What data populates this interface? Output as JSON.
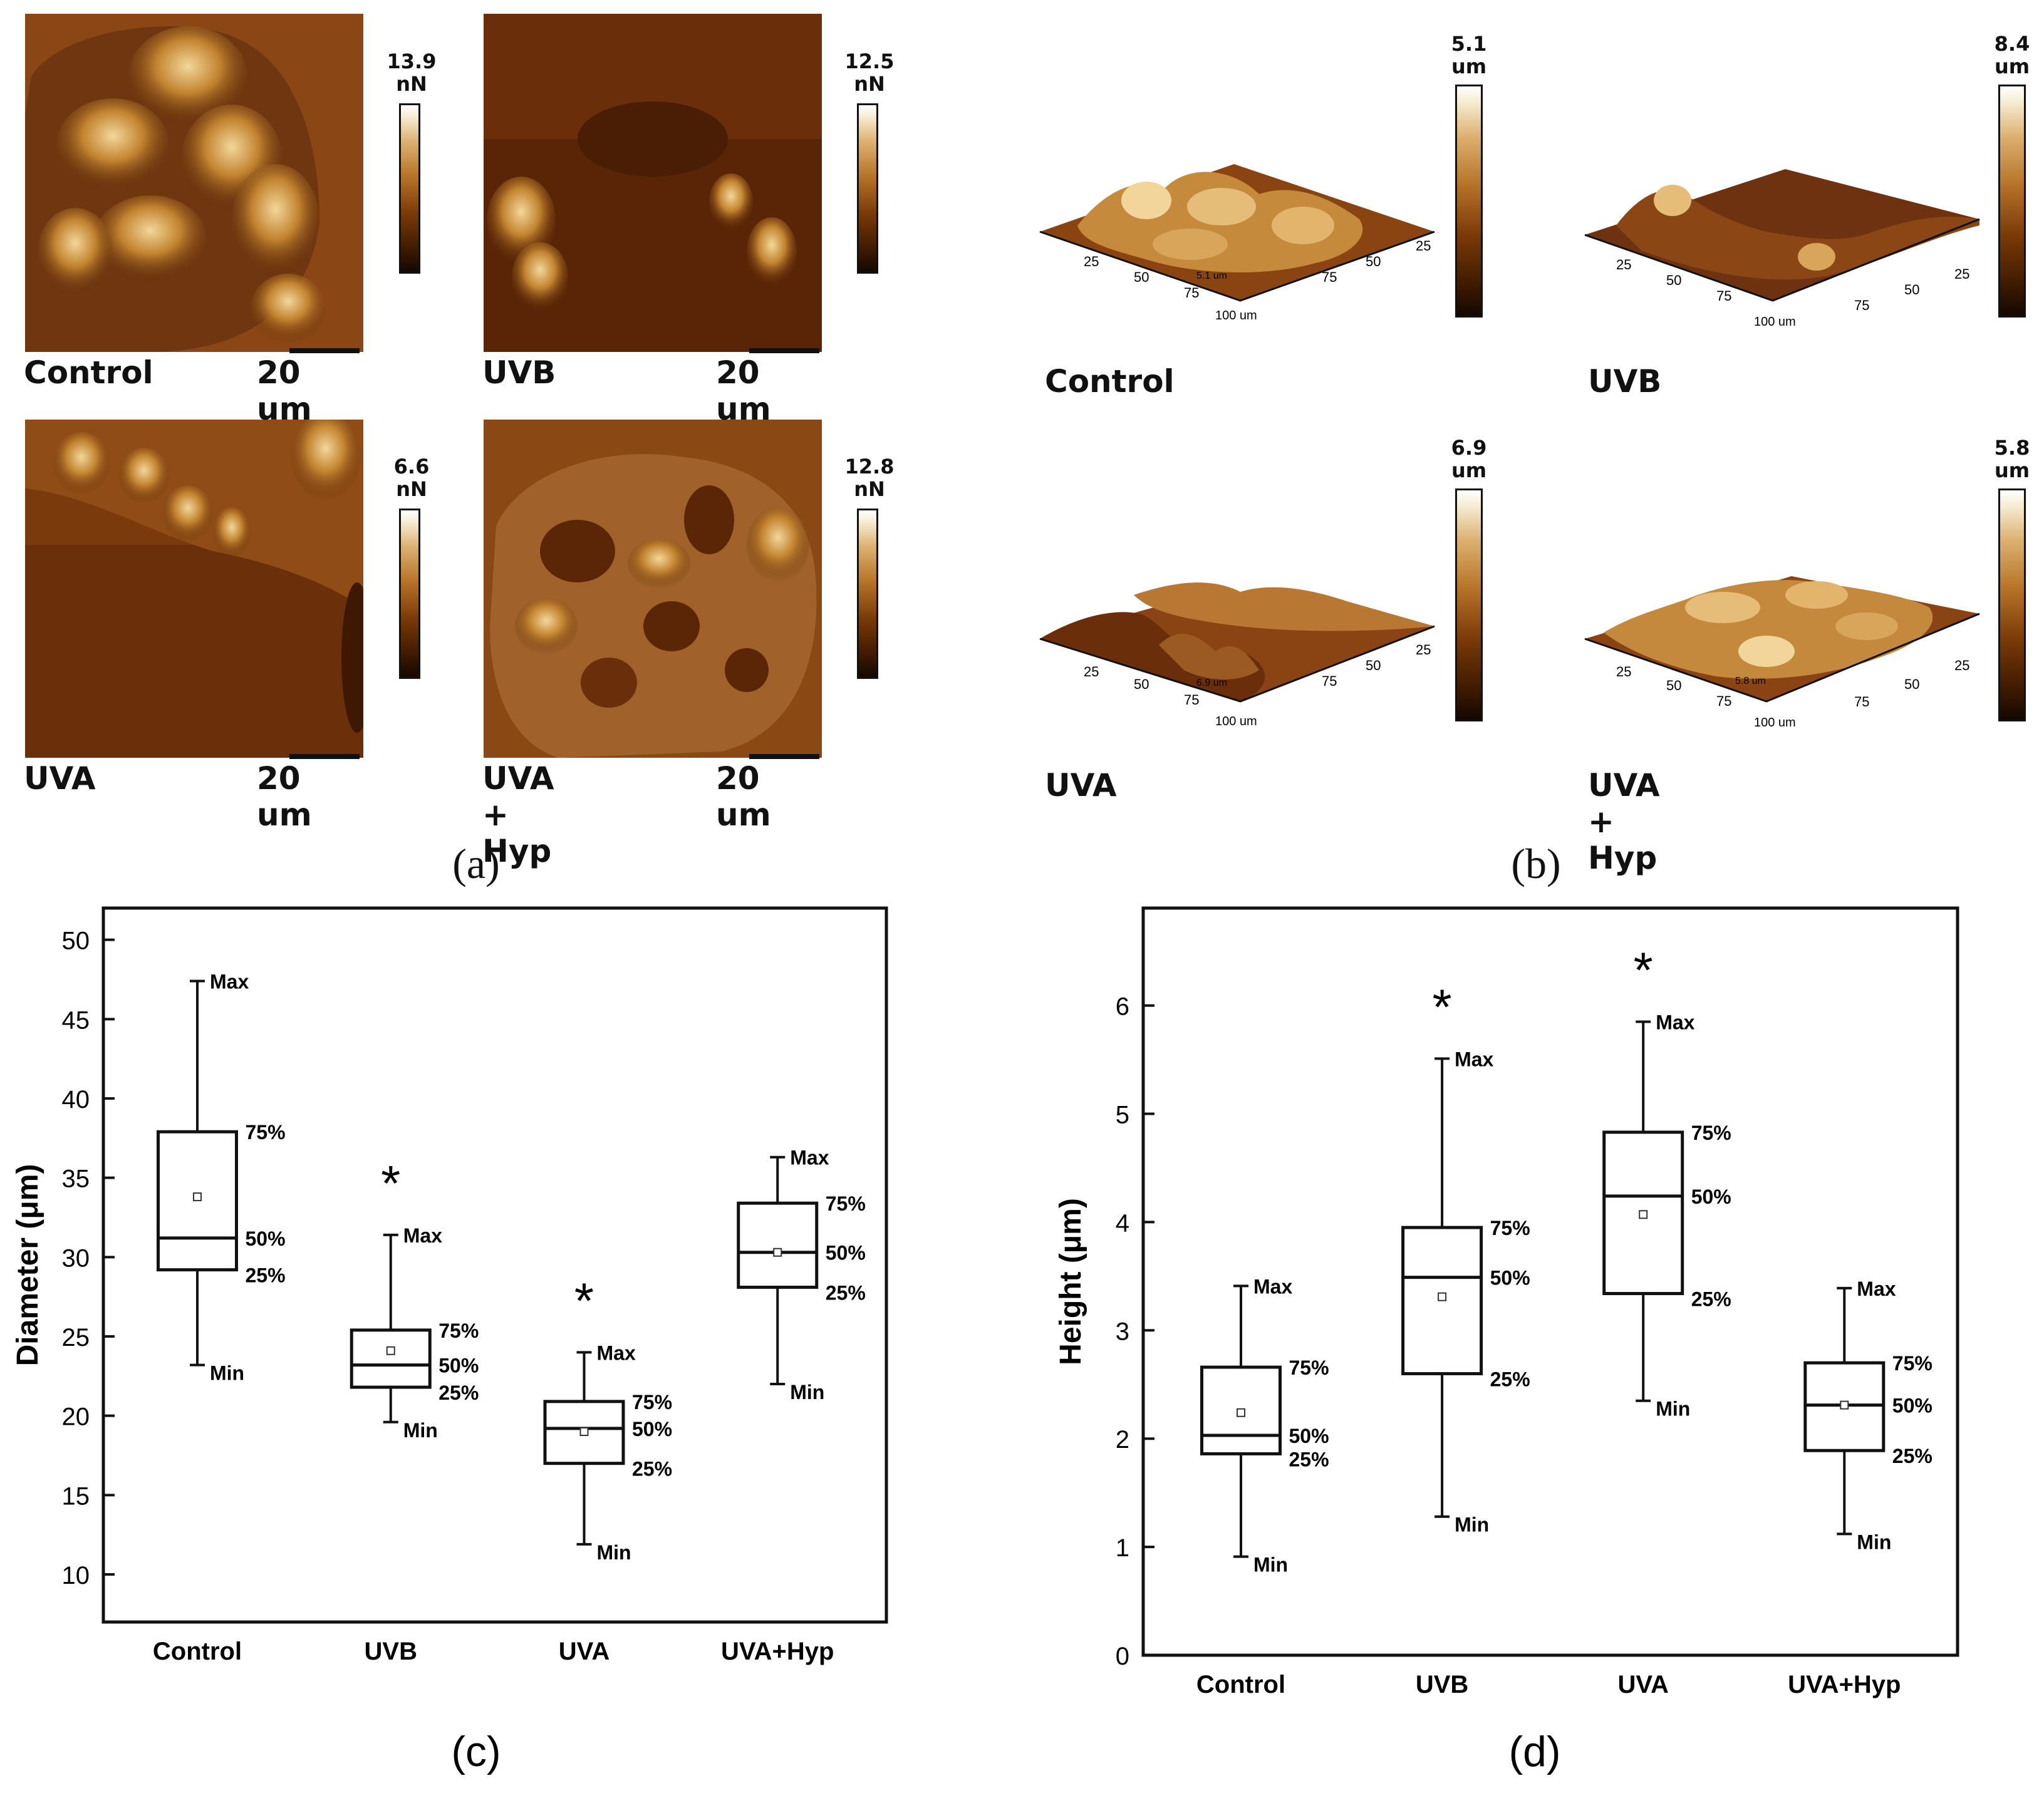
{
  "panel_a": {
    "images": [
      {
        "label": "Control",
        "scale": "20 um",
        "cbar_value": "13.9",
        "cbar_unit": "nN"
      },
      {
        "label": "UVB",
        "scale": "20 um",
        "cbar_value": "12.5",
        "cbar_unit": "nN"
      },
      {
        "label": "UVA",
        "scale": "20 um",
        "cbar_value": "6.6",
        "cbar_unit": "nN"
      },
      {
        "label": "UVA + Hyp",
        "scale": "20 um",
        "cbar_value": "12.8",
        "cbar_unit": "nN"
      }
    ],
    "sublabel": "(a)"
  },
  "panel_b": {
    "images": [
      {
        "label": "Control",
        "cbar_value": "5.1",
        "cbar_unit": "um",
        "ticks": [
          "25",
          "50",
          "75",
          "100 um"
        ],
        "zlabel": "5.1 um"
      },
      {
        "label": "UVB",
        "cbar_value": "8.4",
        "cbar_unit": "um",
        "ticks": [
          "25",
          "50",
          "75",
          "100 um"
        ],
        "zlabel": ""
      },
      {
        "label": "UVA",
        "cbar_value": "6.9",
        "cbar_unit": "um",
        "ticks": [
          "25",
          "50",
          "75",
          "100 um"
        ],
        "zlabel": "6.9 um"
      },
      {
        "label": "UVA + Hyp",
        "cbar_value": "5.8",
        "cbar_unit": "um",
        "ticks": [
          "25",
          "50",
          "75",
          "100 um"
        ],
        "zlabel": "5.8 um"
      }
    ],
    "sublabel": "(b)"
  },
  "chart_data": [
    {
      "type": "box",
      "sublabel": "(c)",
      "ylabel": "Diameter   (μm)",
      "ylim": [
        7,
        52
      ],
      "yticks": [
        10,
        15,
        20,
        25,
        30,
        35,
        40,
        45,
        50
      ],
      "categories": [
        "Control",
        "UVB",
        "UVA",
        "UVA+Hyp"
      ],
      "boxes": [
        {
          "min": 23.2,
          "q1": 29.2,
          "median": 31.2,
          "q3": 37.9,
          "max": 47.4,
          "mean": 33.8,
          "sig": false
        },
        {
          "min": 19.6,
          "q1": 21.8,
          "median": 23.2,
          "q3": 25.4,
          "max": 31.4,
          "mean": 24.1,
          "sig": true
        },
        {
          "min": 11.9,
          "q1": 17.0,
          "median": 19.2,
          "q3": 20.9,
          "max": 24.0,
          "mean": 19.0,
          "sig": true
        },
        {
          "min": 22.0,
          "q1": 28.1,
          "median": 30.3,
          "q3": 33.4,
          "max": 36.3,
          "mean": 30.3,
          "sig": false
        }
      ],
      "box_labels": {
        "max": "Max",
        "q3": "75%",
        "median": "50%",
        "q1": "25%",
        "min": "Min"
      },
      "star": "*"
    },
    {
      "type": "box",
      "sublabel": "(d)",
      "ylabel": "Height   (μm)",
      "ylim": [
        0,
        6.9
      ],
      "yticks": [
        0,
        1,
        2,
        3,
        4,
        5,
        6
      ],
      "categories": [
        "Control",
        "UVB",
        "UVA",
        "UVA+Hyp"
      ],
      "boxes": [
        {
          "min": 0.91,
          "q1": 1.86,
          "median": 2.03,
          "q3": 2.66,
          "max": 3.41,
          "mean": 2.24,
          "sig": false
        },
        {
          "min": 1.28,
          "q1": 2.6,
          "median": 3.49,
          "q3": 3.95,
          "max": 5.51,
          "mean": 3.31,
          "sig": true
        },
        {
          "min": 2.35,
          "q1": 3.34,
          "median": 4.24,
          "q3": 4.83,
          "max": 5.85,
          "mean": 4.07,
          "sig": true
        },
        {
          "min": 1.12,
          "q1": 1.89,
          "median": 2.31,
          "q3": 2.7,
          "max": 3.39,
          "mean": 2.31,
          "sig": false
        }
      ],
      "box_labels": {
        "max": "Max",
        "q3": "75%",
        "median": "50%",
        "q1": "25%",
        "min": "Min"
      },
      "star": "*"
    }
  ]
}
